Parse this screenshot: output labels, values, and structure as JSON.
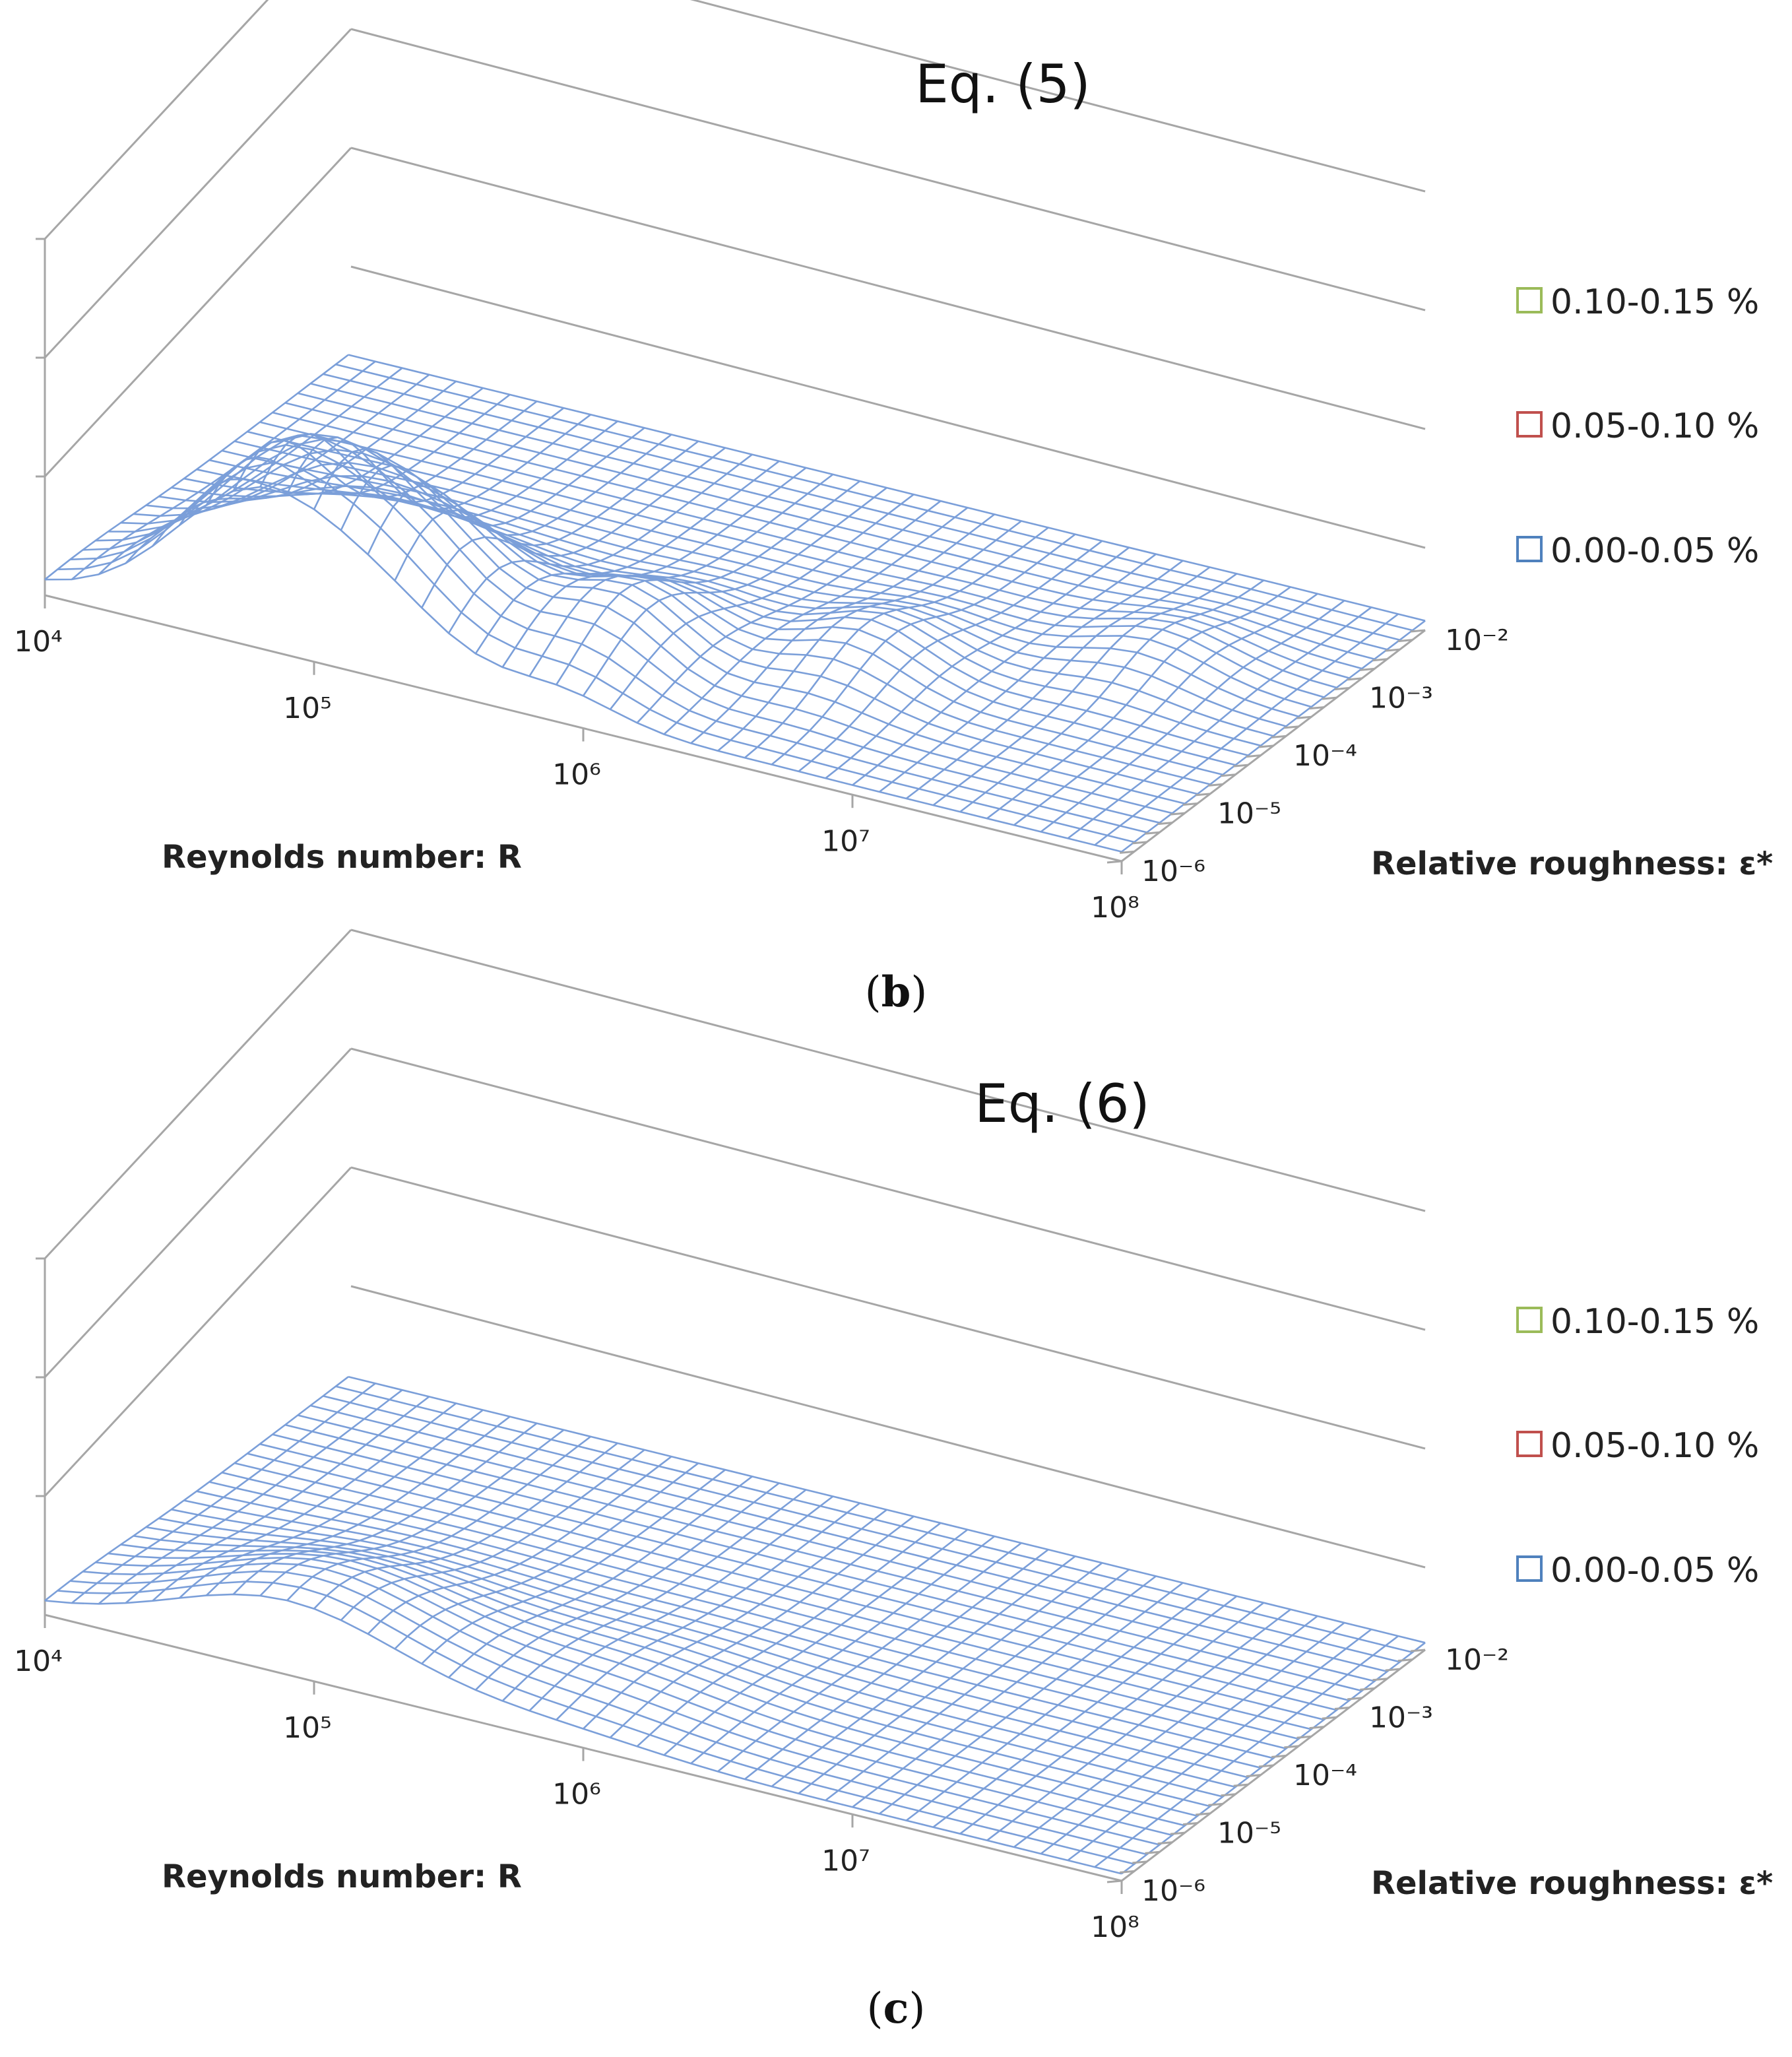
{
  "chart_data": [
    {
      "type": "surface",
      "title": "Eq. (5)",
      "caption": "b",
      "xlabel": "Reynolds number: R",
      "ylabel": "Relative roughness: ε*",
      "x_ticks": [
        {
          "label": "10⁴",
          "value": 4
        },
        {
          "label": "10⁵",
          "value": 5
        },
        {
          "label": "10⁶",
          "value": 6
        },
        {
          "label": "10⁷",
          "value": 7
        },
        {
          "label": "10⁸",
          "value": 8
        }
      ],
      "y_ticks": [
        {
          "label": "10⁻²",
          "value": -2
        },
        {
          "label": "10⁻³",
          "value": -3
        },
        {
          "label": "10⁻⁴",
          "value": -4
        },
        {
          "label": "10⁻⁵",
          "value": -5
        },
        {
          "label": "10⁻⁶",
          "value": -6
        }
      ],
      "x_range": [
        4,
        8
      ],
      "y_range": [
        -6,
        -2
      ],
      "zlim": [
        0,
        0.15
      ],
      "z_unit": "%",
      "legend": [
        {
          "label": "0.10-0.15 %",
          "color": "#9bbb59"
        },
        {
          "label": "0.05-0.10 %",
          "color": "#c0504d"
        },
        {
          "label": "0.00-0.05 %",
          "color": "#4f81bd"
        }
      ],
      "surface": {
        "base": 0.004,
        "features": [
          {
            "x": 4.8,
            "y": -2.4,
            "height": 0.07,
            "sx": 0.45,
            "sy": 1.1
          },
          {
            "x": 5.3,
            "y": -2.6,
            "height": 0.032,
            "sx": 0.35,
            "sy": 0.9
          },
          {
            "x": 5.9,
            "y": -2.9,
            "height": 0.028,
            "sx": 0.3,
            "sy": 0.9
          },
          {
            "x": 6.6,
            "y": -3.6,
            "height": 0.018,
            "sx": 0.3,
            "sy": 0.8
          },
          {
            "x": 7.4,
            "y": -4.6,
            "height": 0.012,
            "sx": 0.3,
            "sy": 0.7
          }
        ]
      }
    },
    {
      "type": "surface",
      "title": "Eq. (6)",
      "caption": "c",
      "xlabel": "Reynolds number: R",
      "ylabel": "Relative roughness: ε*",
      "x_ticks": [
        {
          "label": "10⁴",
          "value": 4
        },
        {
          "label": "10⁵",
          "value": 5
        },
        {
          "label": "10⁶",
          "value": 6
        },
        {
          "label": "10⁷",
          "value": 7
        },
        {
          "label": "10⁸",
          "value": 8
        }
      ],
      "y_ticks": [
        {
          "label": "10⁻²",
          "value": -2
        },
        {
          "label": "10⁻³",
          "value": -3
        },
        {
          "label": "10⁻⁴",
          "value": -4
        },
        {
          "label": "10⁻⁵",
          "value": -5
        },
        {
          "label": "10⁻⁶",
          "value": -6
        }
      ],
      "x_range": [
        4,
        8
      ],
      "y_range": [
        -6,
        -2
      ],
      "zlim": [
        0,
        0.15
      ],
      "z_unit": "%",
      "legend": [
        {
          "label": "0.10-0.15 %",
          "color": "#9bbb59"
        },
        {
          "label": "0.05-0.10 %",
          "color": "#c0504d"
        },
        {
          "label": "0.00-0.05 %",
          "color": "#4f81bd"
        }
      ],
      "surface": {
        "base": 0.003,
        "features": [
          {
            "x": 4.9,
            "y": -2.3,
            "height": 0.03,
            "sx": 0.6,
            "sy": 1.2
          },
          {
            "x": 5.9,
            "y": -2.8,
            "height": 0.008,
            "sx": 0.5,
            "sy": 1.0
          }
        ]
      }
    }
  ],
  "colors": {
    "wall": "#a6a6a6",
    "mesh": "#7b9fd9"
  }
}
